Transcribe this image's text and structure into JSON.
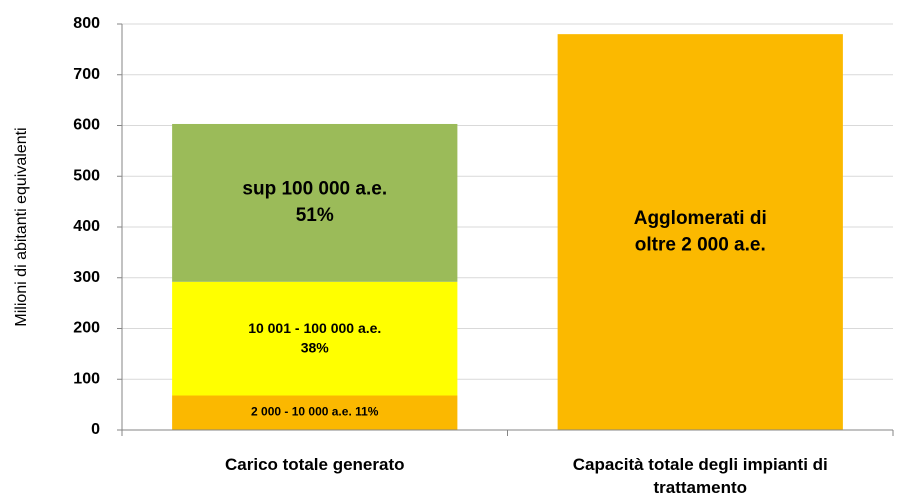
{
  "chart_data": {
    "type": "stacked_bar",
    "y_label": "Milioni di abitanti equivalenti",
    "categories": [
      [
        "Carico totale generato"
      ],
      [
        "Capacità totale degli impianti di",
        "trattamento"
      ]
    ],
    "series": [
      {
        "label": [
          "2 000 - 10 000 a.e. 11%"
        ],
        "color": "#fbb800",
        "values": [
          68,
          null
        ]
      },
      {
        "label": [
          "10 001 - 100 000 a.e.",
          "38%"
        ],
        "color": "#ffff00",
        "values": [
          224,
          null
        ]
      },
      {
        "label": [
          "sup 100 000 a.e.",
          "51%"
        ],
        "color": "#9bbb59",
        "values": [
          311,
          null
        ]
      },
      {
        "label": [
          "Agglomerati di",
          "oltre 2 000 a.e."
        ],
        "color": "#fbb900",
        "values": [
          null,
          780
        ]
      }
    ],
    "ylim": [
      0,
      800
    ],
    "yticks": [
      0,
      100,
      200,
      300,
      400,
      500,
      600,
      700,
      800
    ],
    "grid": true
  }
}
